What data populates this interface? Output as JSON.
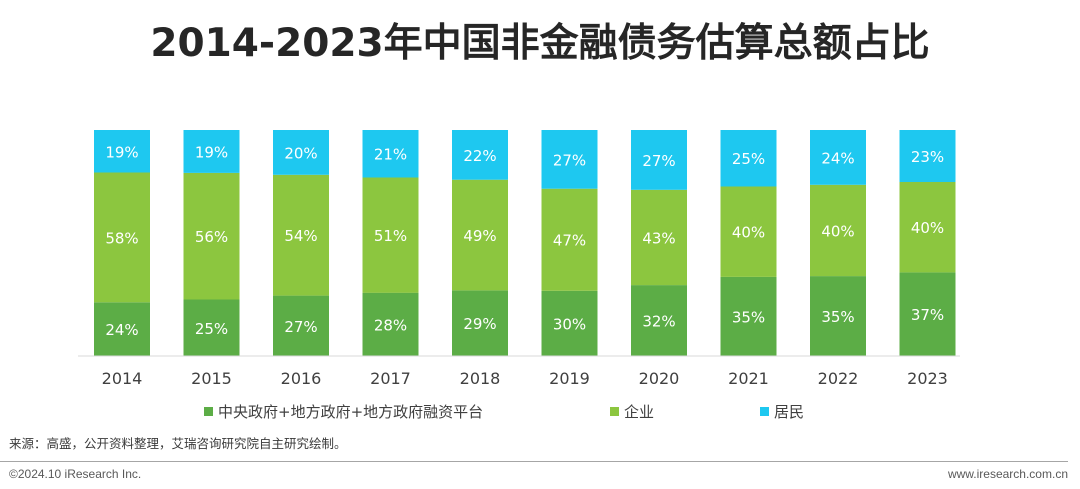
{
  "title": "2014-2023年中国非金融债务估算总额占比",
  "source": "来源：高盛，公开资料整理，艾瑞咨询研究院自主研究绘制。",
  "copyright": "©2024.10 iResearch Inc.",
  "website": "www.iresearch.com.cn",
  "colors": {
    "government": "#5cad46",
    "enterprise": "#8cc63f",
    "resident": "#1ec8f0"
  },
  "chart_data": {
    "type": "bar",
    "stacked": true,
    "percent": true,
    "categories": [
      "2014",
      "2015",
      "2016",
      "2017",
      "2018",
      "2019",
      "2020",
      "2021",
      "2022",
      "2023"
    ],
    "series": [
      {
        "name": "中央政府+地方政府+地方政府融资平台",
        "values": [
          24,
          25,
          27,
          28,
          29,
          30,
          32,
          35,
          35,
          37
        ]
      },
      {
        "name": "企业",
        "values": [
          58,
          56,
          54,
          51,
          49,
          47,
          43,
          40,
          40,
          40
        ]
      },
      {
        "name": "居民",
        "values": [
          19,
          19,
          20,
          21,
          22,
          27,
          27,
          25,
          24,
          23
        ]
      }
    ],
    "legend": "bottom",
    "grid": false
  }
}
